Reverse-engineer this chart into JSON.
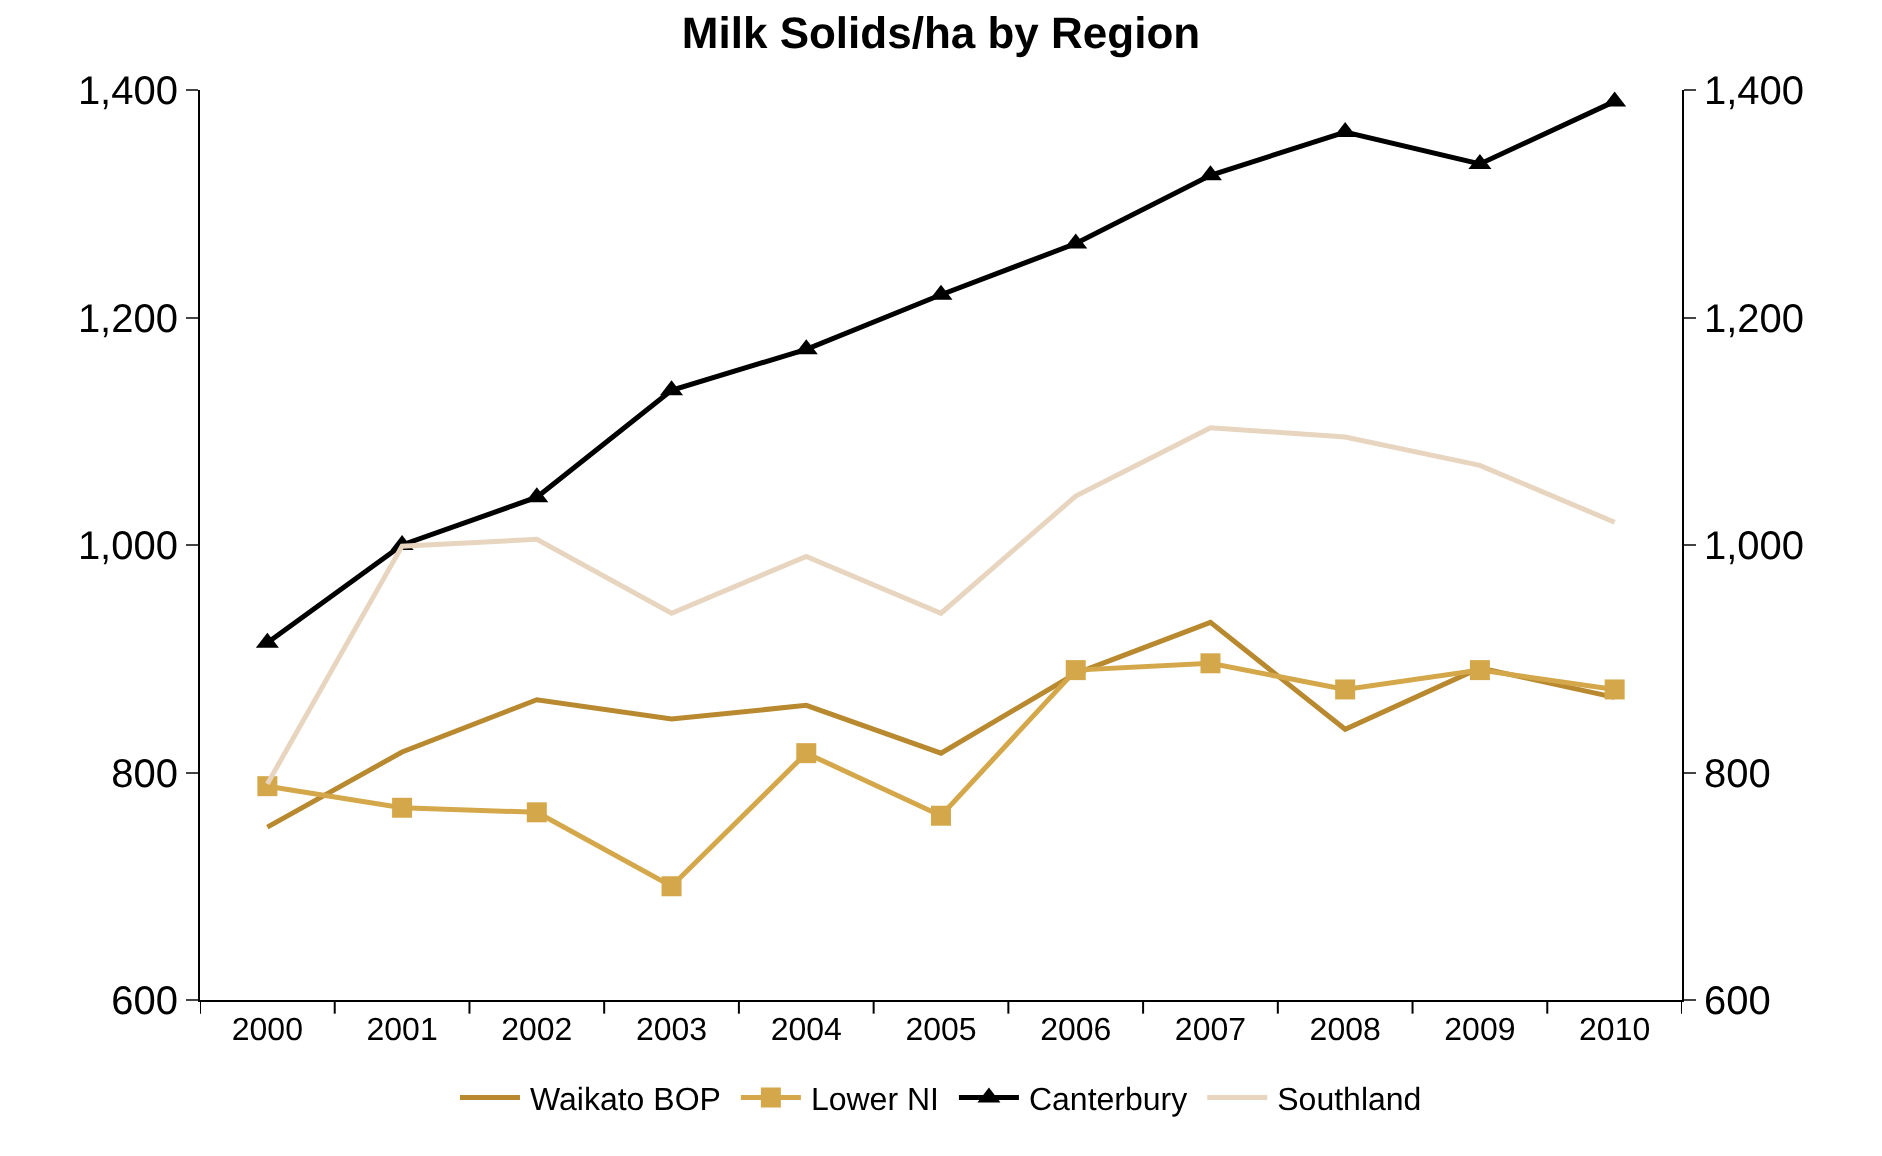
{
  "chart_data": {
    "type": "line",
    "title": "Milk Solids/ha by Region",
    "categories": [
      "2000",
      "2001",
      "2002",
      "2003",
      "2004",
      "2005",
      "2006",
      "2007",
      "2008",
      "2009",
      "2010"
    ],
    "series": [
      {
        "name": "Waikato BOP",
        "color": "#b8892f",
        "marker": "none",
        "values": [
          752,
          818,
          864,
          847,
          859,
          817,
          887,
          932,
          838,
          892,
          866
        ]
      },
      {
        "name": "Lower NI",
        "color": "#d4a84a",
        "marker": "square",
        "values": [
          788,
          769,
          765,
          700,
          817,
          762,
          890,
          896,
          873,
          890,
          873
        ]
      },
      {
        "name": "Canterbury",
        "color": "#000000",
        "marker": "triangle",
        "values": [
          914,
          1000,
          1042,
          1136,
          1172,
          1220,
          1265,
          1325,
          1363,
          1335,
          1390
        ]
      },
      {
        "name": "Southland",
        "color": "#e8d5c0",
        "marker": "none",
        "values": [
          790,
          999,
          1005,
          940,
          990,
          940,
          1043,
          1103,
          1095,
          1070,
          1020
        ]
      }
    ],
    "ylim": [
      600,
      1400
    ],
    "yticks": [
      600,
      800,
      {
        "value": 1000,
        "label": "1,000"
      },
      {
        "value": 1200,
        "label": "1,200"
      },
      {
        "value": 1400,
        "label": "1,400"
      }
    ],
    "y2lim": [
      600,
      1400
    ],
    "y2ticks": [
      600,
      800,
      {
        "value": 1000,
        "label": "1,000"
      },
      {
        "value": 1200,
        "label": "1,200"
      },
      {
        "value": 1400,
        "label": "1,400"
      }
    ],
    "legend": "bottom",
    "line_style": "solid"
  }
}
